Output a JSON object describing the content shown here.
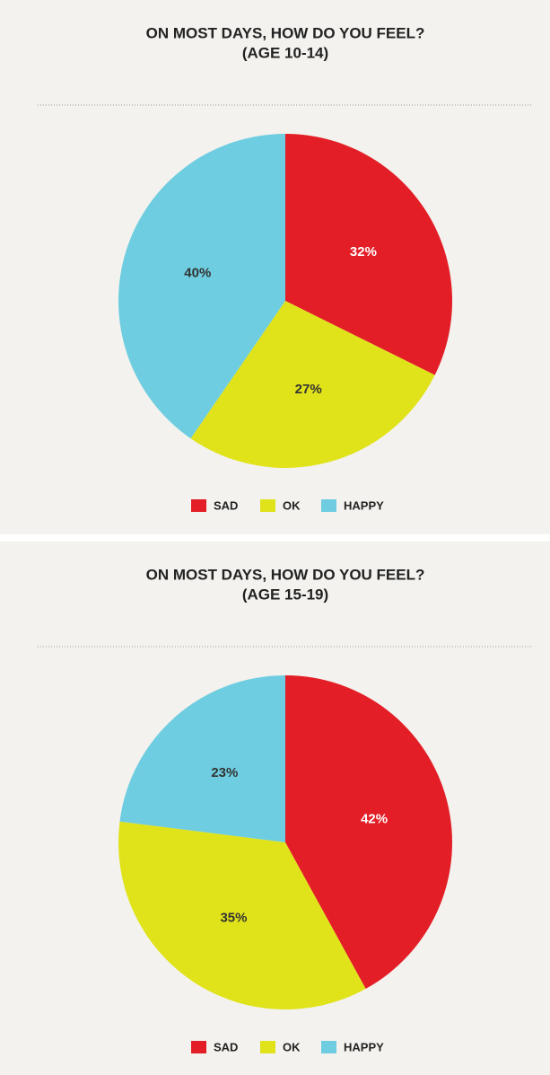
{
  "chart_data": [
    {
      "type": "pie",
      "title": "ON MOST DAYS, HOW DO YOU FEEL?",
      "subtitle": "(AGE 10-14)",
      "categories": [
        "SAD",
        "OK",
        "HAPPY"
      ],
      "values": [
        32,
        27,
        40
      ],
      "value_labels": [
        "32%",
        "27%",
        "40%"
      ],
      "colors": [
        "#e31e26",
        "#e0e31a",
        "#6ecde0"
      ],
      "legend": "bottom"
    },
    {
      "type": "pie",
      "title": "ON MOST DAYS, HOW DO YOU FEEL?",
      "subtitle": "(AGE 15-19)",
      "categories": [
        "SAD",
        "OK",
        "HAPPY"
      ],
      "values": [
        42,
        35,
        23
      ],
      "value_labels": [
        "42%",
        "35%",
        "23%"
      ],
      "colors": [
        "#e31e26",
        "#e0e31a",
        "#6ecde0"
      ],
      "legend": "bottom"
    }
  ]
}
